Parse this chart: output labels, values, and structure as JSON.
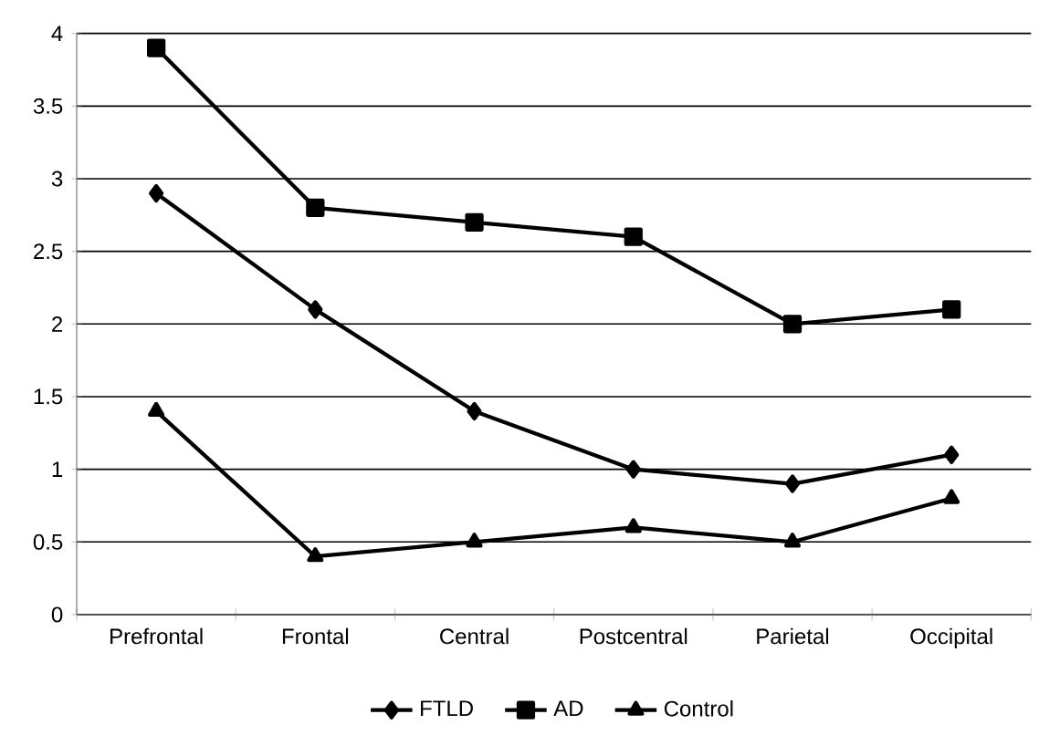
{
  "chart_data": {
    "type": "line",
    "categories": [
      "Prefrontal",
      "Frontal",
      "Central",
      "Postcentral",
      "Parietal",
      "Occipital"
    ],
    "series": [
      {
        "name": "FTLD",
        "color": "#000000",
        "marker": "diamond",
        "values": [
          2.9,
          2.1,
          1.4,
          1.0,
          0.9,
          1.1
        ]
      },
      {
        "name": "AD",
        "color": "#000000",
        "marker": "square",
        "values": [
          3.9,
          2.8,
          2.7,
          2.6,
          2.0,
          2.1
        ]
      },
      {
        "name": "Control",
        "color": "#000000",
        "marker": "triangle",
        "values": [
          1.4,
          0.4,
          0.5,
          0.6,
          0.5,
          0.8
        ]
      }
    ],
    "ylim": [
      0,
      4
    ],
    "yticks": [
      0,
      0.5,
      1,
      1.5,
      2,
      2.5,
      3,
      3.5,
      4
    ],
    "grid": "y",
    "legend": "bottom",
    "line_style": "solid"
  }
}
